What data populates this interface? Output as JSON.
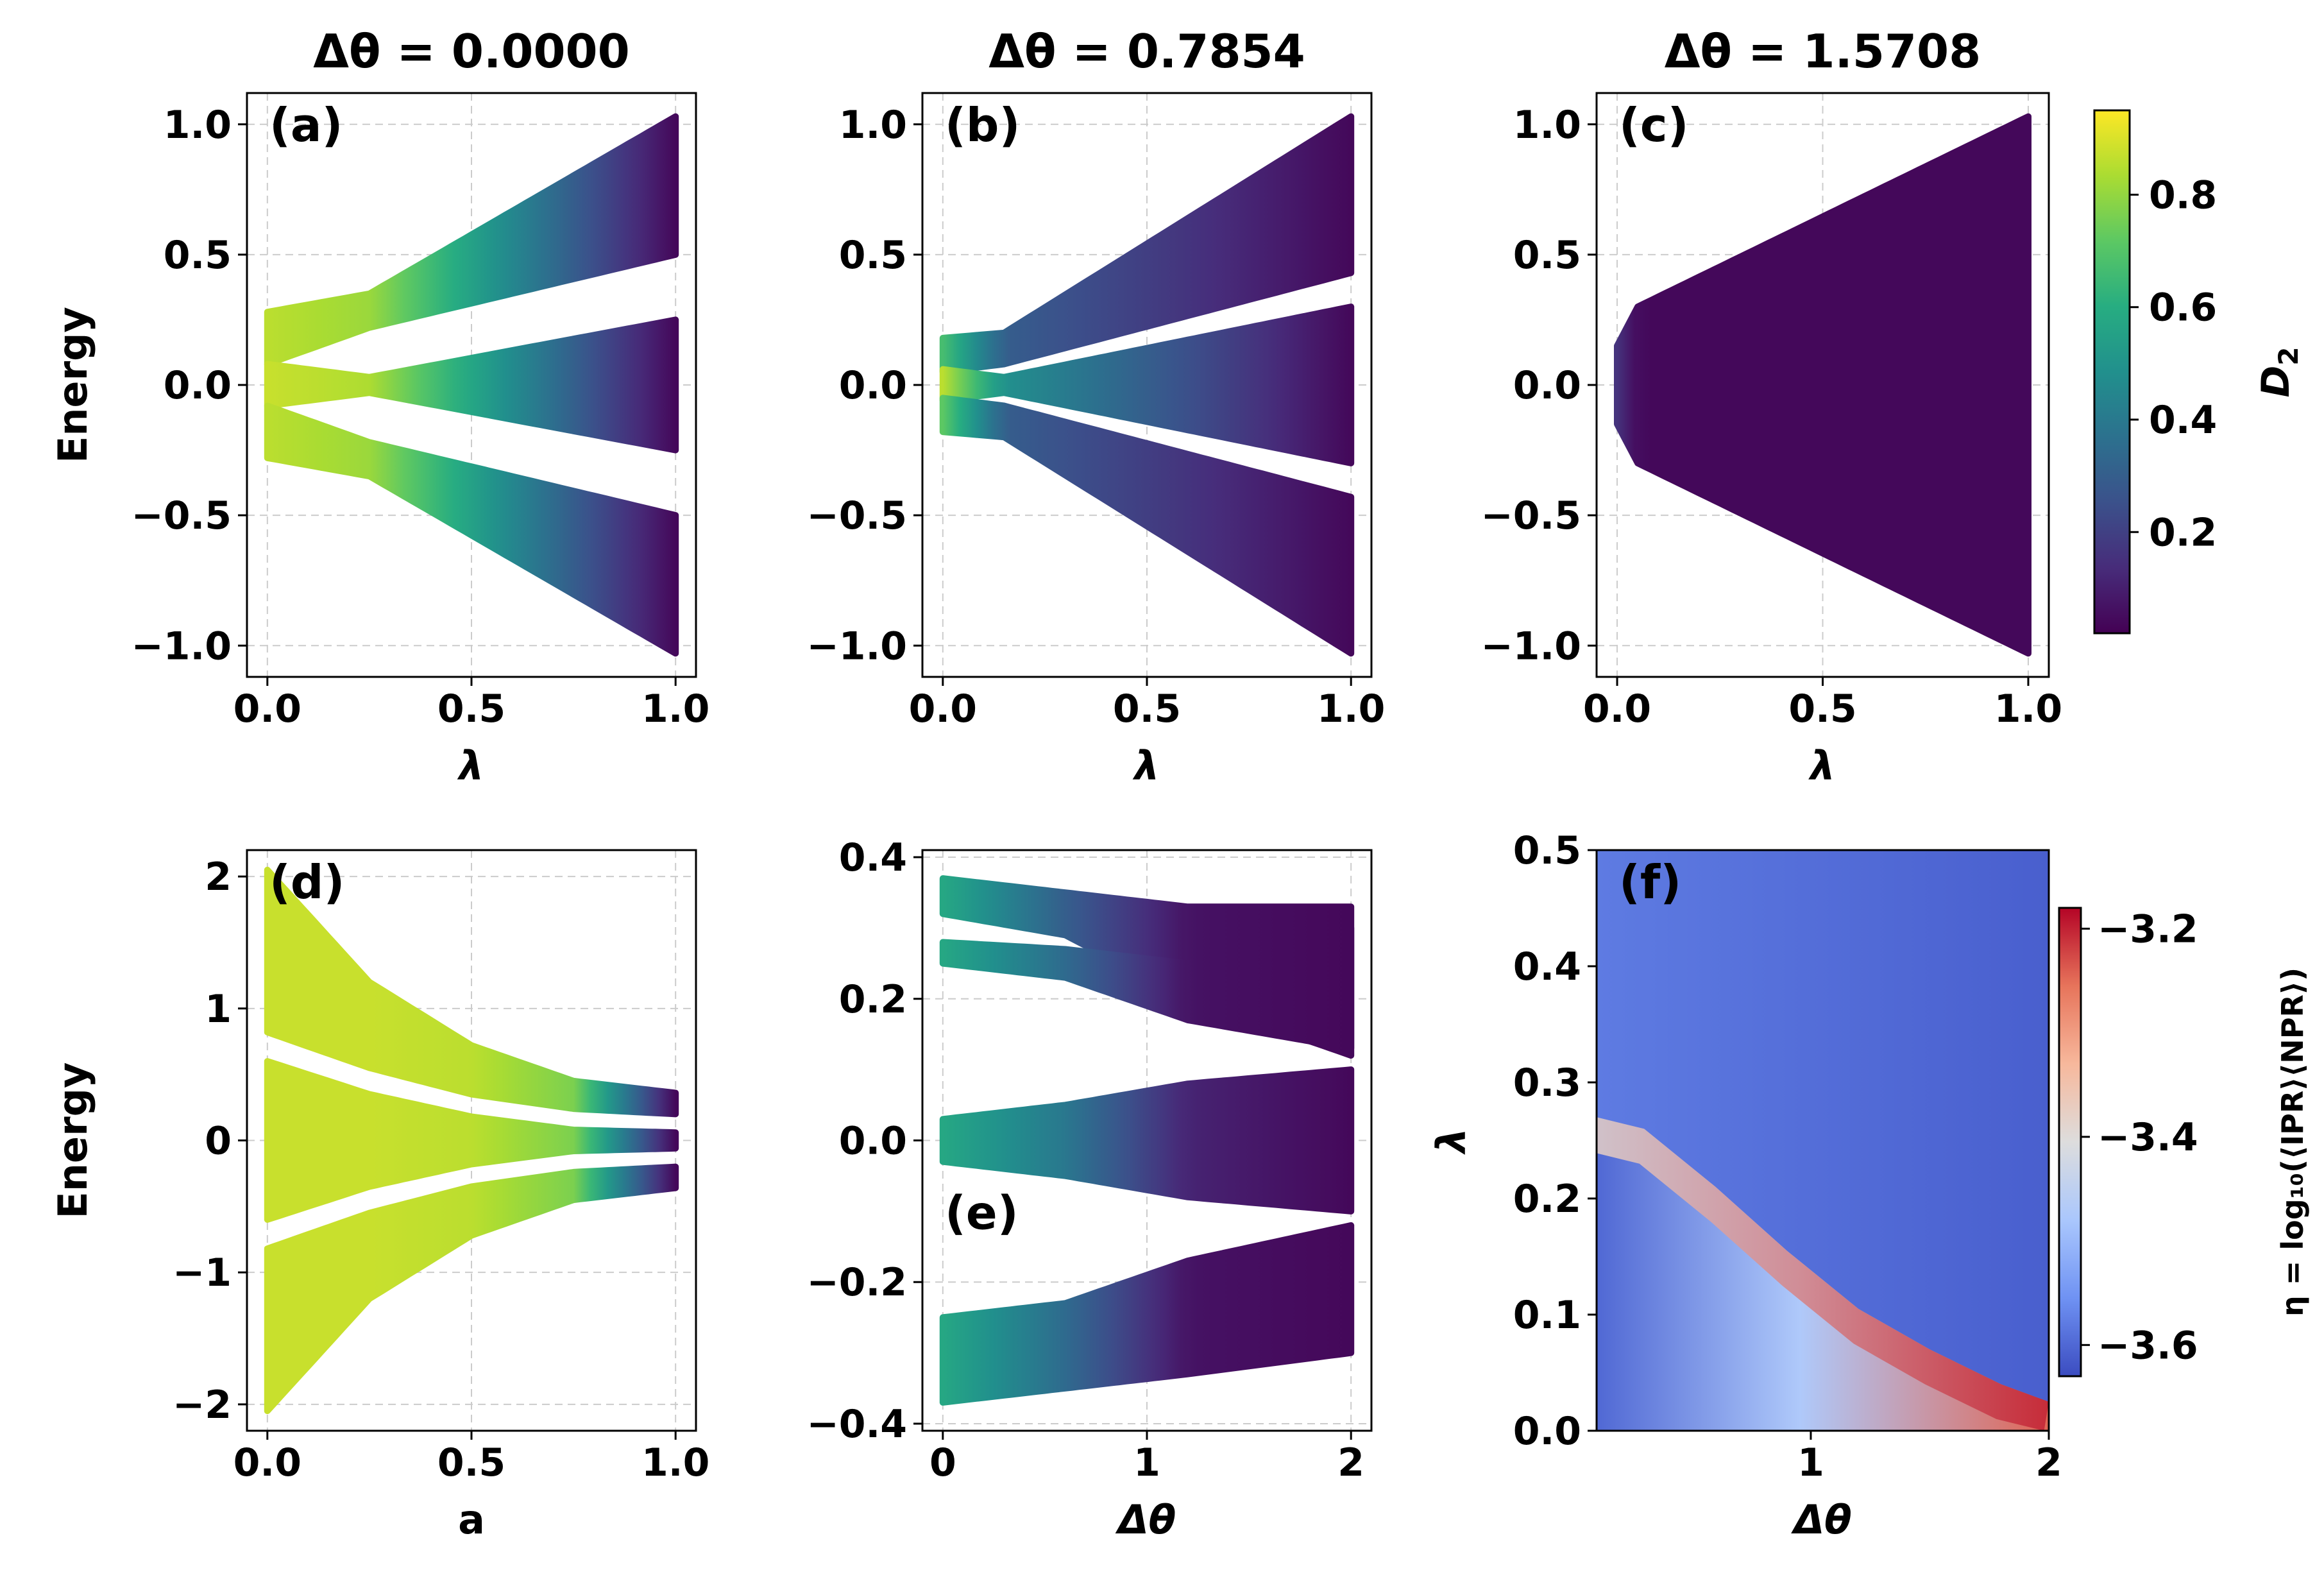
{
  "figure": {
    "colorbar_top": {
      "label": "D",
      "label_sub": "2",
      "ticks": [
        "0.2",
        "0.4",
        "0.6",
        "0.8"
      ]
    },
    "colorbar_bottom": {
      "label": "η = log₁₀(⟨IPR⟩⟨NPR⟩)",
      "ticks": [
        "−3.2",
        "−3.4",
        "−3.6"
      ]
    }
  },
  "colors": {
    "viridis": [
      "#440154",
      "#472c7a",
      "#3b518b",
      "#2c718e",
      "#21908d",
      "#27ad81",
      "#5cc863",
      "#aadc32",
      "#fde725"
    ],
    "coolwarm": [
      "#3b4cc0",
      "#6f92f3",
      "#aac7fd",
      "#dddddd",
      "#f7b89c",
      "#e7745b",
      "#b40426"
    ],
    "grid": "#cccccc"
  },
  "chart_data": [
    {
      "id": "a",
      "type": "scatter",
      "panel_label": "(a)",
      "title": "Δθ = 0.0000",
      "xlabel": "λ",
      "ylabel": "Energy",
      "xlim": [
        -0.05,
        1.05
      ],
      "ylim": [
        -1.12,
        1.12
      ],
      "xticks": [
        {
          "v": 0,
          "t": "0.0"
        },
        {
          "v": 0.5,
          "t": "0.5"
        },
        {
          "v": 1,
          "t": "1.0"
        }
      ],
      "yticks": [
        {
          "v": -1,
          "t": "−1.0"
        },
        {
          "v": -0.5,
          "t": "−0.5"
        },
        {
          "v": 0,
          "t": "0.0"
        },
        {
          "v": 0.5,
          "t": "0.5"
        },
        {
          "v": 1,
          "t": "1.0"
        }
      ],
      "grid": true,
      "bands": [
        {
          "x": [
            0,
            0.25,
            1
          ],
          "lo": [
            0.08,
            0.22,
            0.5
          ],
          "hi": [
            0.28,
            0.35,
            1.03
          ],
          "d2": [
            0.9,
            0.85,
            0.02
          ]
        },
        {
          "x": [
            0,
            0.25,
            1
          ],
          "lo": [
            -0.08,
            -0.03,
            -0.25
          ],
          "hi": [
            0.08,
            0.03,
            0.25
          ],
          "d2": [
            0.92,
            0.88,
            0.02
          ]
        },
        {
          "x": [
            0,
            0.25,
            1
          ],
          "lo": [
            -0.28,
            -0.35,
            -1.03
          ],
          "hi": [
            -0.08,
            -0.22,
            -0.5
          ],
          "d2": [
            0.9,
            0.85,
            0.02
          ]
        }
      ]
    },
    {
      "id": "b",
      "type": "scatter",
      "panel_label": "(b)",
      "title": "Δθ = 0.7854",
      "xlabel": "λ",
      "ylabel": "",
      "xlim": [
        -0.05,
        1.05
      ],
      "ylim": [
        -1.12,
        1.12
      ],
      "xticks": [
        {
          "v": 0,
          "t": "0.0"
        },
        {
          "v": 0.5,
          "t": "0.5"
        },
        {
          "v": 1,
          "t": "1.0"
        }
      ],
      "yticks": [
        {
          "v": -1,
          "t": "−1.0"
        },
        {
          "v": -0.5,
          "t": "−0.5"
        },
        {
          "v": 0,
          "t": "0.0"
        },
        {
          "v": 0.5,
          "t": "0.5"
        },
        {
          "v": 1,
          "t": "1.0"
        }
      ],
      "grid": true,
      "bands": [
        {
          "x": [
            0,
            0.15,
            1
          ],
          "lo": [
            0.05,
            0.08,
            0.43
          ],
          "hi": [
            0.18,
            0.2,
            1.03
          ],
          "d2": [
            0.7,
            0.3,
            0.02
          ]
        },
        {
          "x": [
            0,
            0.15,
            1
          ],
          "lo": [
            -0.06,
            -0.03,
            -0.3
          ],
          "hi": [
            0.06,
            0.03,
            0.3
          ],
          "d2": [
            0.9,
            0.5,
            0.02
          ]
        },
        {
          "x": [
            0,
            0.15,
            1
          ],
          "lo": [
            -0.18,
            -0.2,
            -1.03
          ],
          "hi": [
            -0.05,
            -0.08,
            -0.43
          ],
          "d2": [
            0.75,
            0.3,
            0.02
          ]
        }
      ]
    },
    {
      "id": "c",
      "type": "scatter",
      "panel_label": "(c)",
      "title": "Δθ = 1.5708",
      "xlabel": "λ",
      "ylabel": "",
      "xlim": [
        -0.05,
        1.05
      ],
      "ylim": [
        -1.12,
        1.12
      ],
      "xticks": [
        {
          "v": 0,
          "t": "0.0"
        },
        {
          "v": 0.5,
          "t": "0.5"
        },
        {
          "v": 1,
          "t": "1.0"
        }
      ],
      "yticks": [
        {
          "v": -1,
          "t": "−1.0"
        },
        {
          "v": -0.5,
          "t": "−0.5"
        },
        {
          "v": 0,
          "t": "0.0"
        },
        {
          "v": 0.5,
          "t": "0.5"
        },
        {
          "v": 1,
          "t": "1.0"
        }
      ],
      "grid": true,
      "bands": [
        {
          "x": [
            0,
            0.05,
            1
          ],
          "lo": [
            -0.15,
            -0.3,
            -1.03
          ],
          "hi": [
            0.15,
            0.3,
            1.03
          ],
          "d2": [
            0.15,
            0.02,
            0.02
          ]
        }
      ]
    },
    {
      "id": "d",
      "type": "scatter",
      "panel_label": "(d)",
      "title": "",
      "xlabel": "a",
      "ylabel": "Energy",
      "xlim": [
        -0.05,
        1.05
      ],
      "ylim": [
        -2.2,
        2.2
      ],
      "xticks": [
        {
          "v": 0,
          "t": "0.0"
        },
        {
          "v": 0.5,
          "t": "0.5"
        },
        {
          "v": 1,
          "t": "1.0"
        }
      ],
      "yticks": [
        {
          "v": -2,
          "t": "−2"
        },
        {
          "v": -1,
          "t": "−1"
        },
        {
          "v": 0,
          "t": "0"
        },
        {
          "v": 1,
          "t": "1"
        },
        {
          "v": 2,
          "t": "2"
        }
      ],
      "grid": true,
      "bands": [
        {
          "x": [
            0,
            0.25,
            0.5,
            0.75,
            1
          ],
          "lo": [
            0.82,
            0.55,
            0.35,
            0.24,
            0.2
          ],
          "hi": [
            2.05,
            1.2,
            0.72,
            0.45,
            0.36
          ],
          "d2": [
            0.92,
            0.92,
            0.9,
            0.8,
            0.02
          ]
        },
        {
          "x": [
            0,
            0.25,
            0.5,
            0.75,
            1
          ],
          "lo": [
            -0.6,
            -0.35,
            -0.18,
            -0.08,
            -0.06
          ],
          "hi": [
            0.6,
            0.35,
            0.18,
            0.08,
            0.06
          ],
          "d2": [
            0.92,
            0.92,
            0.9,
            0.8,
            0.02
          ]
        },
        {
          "x": [
            0,
            0.25,
            0.5,
            0.75,
            1
          ],
          "lo": [
            -2.05,
            -1.2,
            -0.72,
            -0.45,
            -0.36
          ],
          "hi": [
            -0.82,
            -0.55,
            -0.35,
            -0.24,
            -0.2
          ],
          "d2": [
            0.92,
            0.92,
            0.9,
            0.8,
            0.02
          ]
        }
      ]
    },
    {
      "id": "e",
      "type": "scatter",
      "panel_label": "(e)",
      "title": "",
      "xlabel": "Δθ",
      "ylabel": "",
      "xlim": [
        -0.1,
        2.1
      ],
      "ylim": [
        -0.41,
        0.41
      ],
      "xticks": [
        {
          "v": 0,
          "t": "0"
        },
        {
          "v": 1,
          "t": "1"
        },
        {
          "v": 2,
          "t": "2"
        }
      ],
      "yticks": [
        {
          "v": -0.4,
          "t": "−0.4"
        },
        {
          "v": -0.2,
          "t": "−0.2"
        },
        {
          "v": 0,
          "t": "0.0"
        },
        {
          "v": 0.2,
          "t": "0.2"
        },
        {
          "v": 0.4,
          "t": "0.4"
        }
      ],
      "grid": true,
      "bands": [
        {
          "x": [
            0,
            0.6,
            1.2,
            2
          ],
          "lo": [
            0.32,
            0.29,
            0.2,
            0.12
          ],
          "hi": [
            0.37,
            0.35,
            0.33,
            0.33
          ],
          "d2": [
            0.6,
            0.3,
            0.05,
            0.02
          ]
        },
        {
          "x": [
            0,
            0.6,
            1.2,
            2
          ],
          "lo": [
            0.25,
            0.23,
            0.17,
            0.13
          ],
          "hi": [
            0.28,
            0.27,
            0.25,
            0.3
          ],
          "d2": [
            0.6,
            0.35,
            0.05,
            0.02
          ]
        },
        {
          "x": [
            0,
            0.6,
            1.2,
            2
          ],
          "lo": [
            -0.03,
            -0.05,
            -0.08,
            -0.1
          ],
          "hi": [
            0.03,
            0.05,
            0.08,
            0.1
          ],
          "d2": [
            0.6,
            0.4,
            0.1,
            0.02
          ]
        },
        {
          "x": [
            0,
            0.6,
            1.2,
            2
          ],
          "lo": [
            -0.37,
            -0.35,
            -0.33,
            -0.3
          ],
          "hi": [
            -0.25,
            -0.23,
            -0.17,
            -0.12
          ],
          "d2": [
            0.6,
            0.35,
            0.05,
            0.02
          ]
        }
      ]
    },
    {
      "id": "f",
      "type": "heatmap",
      "panel_label": "(f)",
      "title": "",
      "xlabel": "Δθ",
      "ylabel": "λ",
      "xlim": [
        0.1,
        2.0
      ],
      "ylim": [
        0.0,
        0.5
      ],
      "xticks": [
        {
          "v": 1,
          "t": "1"
        },
        {
          "v": 2,
          "t": "2"
        }
      ],
      "yticks": [
        {
          "v": 0,
          "t": "0.0"
        },
        {
          "v": 0.1,
          "t": "0.1"
        },
        {
          "v": 0.2,
          "t": "0.2"
        },
        {
          "v": 0.3,
          "t": "0.3"
        },
        {
          "v": 0.4,
          "t": "0.4"
        },
        {
          "v": 0.5,
          "t": "0.5"
        }
      ],
      "grid": false,
      "vrange": [
        -3.63,
        -3.18
      ],
      "boundary": {
        "x": [
          0.1,
          0.3,
          0.6,
          0.9,
          1.2,
          1.5,
          1.8,
          2.0
        ],
        "y": [
          0.27,
          0.26,
          0.21,
          0.155,
          0.105,
          0.07,
          0.04,
          0.025
        ]
      },
      "values": {
        "upper_left": -3.58,
        "upper_right": -3.61,
        "lower_left": -3.6,
        "lower_mid": -3.45,
        "edge_left": -3.38,
        "edge_right": -3.2
      }
    }
  ]
}
